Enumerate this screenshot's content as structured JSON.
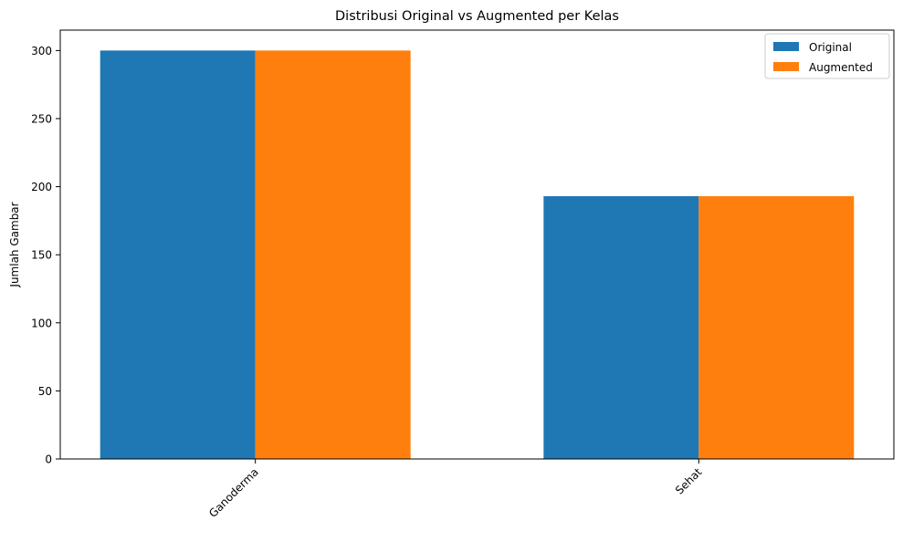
{
  "chart_data": {
    "type": "bar",
    "title": "Distribusi Original vs Augmented per Kelas",
    "xlabel": "",
    "ylabel": "Jumlah Gambar",
    "categories": [
      "Ganoderma",
      "Sehat"
    ],
    "series": [
      {
        "name": "Original",
        "values": [
          300,
          193
        ],
        "color": "#1f77b4"
      },
      {
        "name": "Augmented",
        "values": [
          300,
          193
        ],
        "color": "#ff7f0e"
      }
    ],
    "ylim": [
      0,
      315
    ],
    "yticks": [
      0,
      50,
      100,
      150,
      200,
      250,
      300
    ],
    "xtick_rotation": 45,
    "grid": false,
    "legend_position": "top-right"
  }
}
